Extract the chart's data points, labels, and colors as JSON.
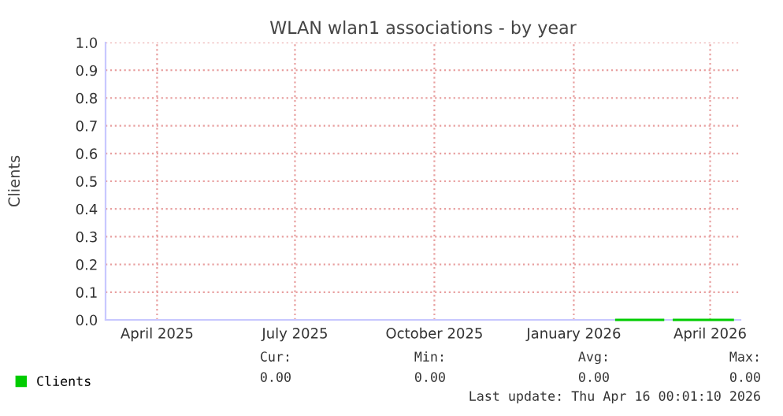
{
  "chart_data": {
    "type": "line",
    "title": "WLAN wlan1 associations - by year",
    "ylabel": "Clients",
    "x": [
      "2026-01-29",
      "2026-03-01",
      "2026-03-02",
      "2026-03-08",
      "2026-04-16"
    ],
    "series": [
      {
        "name": "Clients",
        "color": "#00cc00",
        "values": [
          0.0,
          0.0,
          null,
          0.0,
          0.0
        ]
      }
    ],
    "xlim": [
      "2025-02-26",
      "2026-04-21"
    ],
    "xticks": [
      {
        "value": "2025-04-01",
        "label": "April 2025"
      },
      {
        "value": "2025-07-01",
        "label": "July 2025"
      },
      {
        "value": "2025-10-01",
        "label": "October 2025"
      },
      {
        "value": "2026-01-01",
        "label": "January 2026"
      },
      {
        "value": "2026-04-01",
        "label": "April 2026"
      }
    ],
    "ylim": [
      0.0,
      1.0
    ],
    "yticks": [
      {
        "value": 0,
        "label": "0.0"
      },
      0.1,
      0.2,
      0.3,
      0.4,
      0.5,
      0.6,
      0.7,
      0.8,
      0.9,
      {
        "value": 1,
        "label": "1.0"
      }
    ],
    "grid": true,
    "legend": "bottom left",
    "annotations": [
      "Cur:",
      "Min:",
      "Avg:",
      "Max:",
      "0.00",
      "0.00",
      "0.00",
      "0.00",
      "Last update: Thu Apr 16 00:01:10 2026"
    ]
  }
}
